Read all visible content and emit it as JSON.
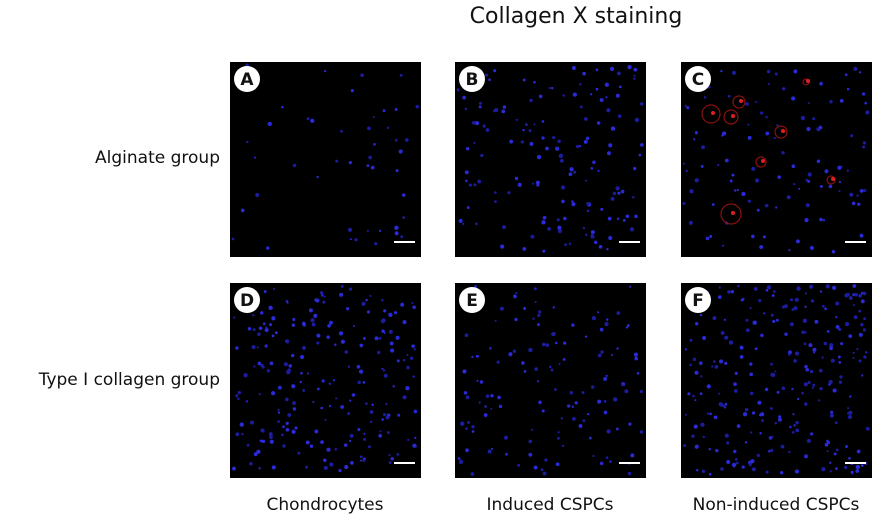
{
  "title": "Collagen X staining",
  "rows": [
    "Alginate group",
    "Type Ⅰ collagen group"
  ],
  "columns": [
    "Chondrocytes",
    "Induced CSPCs",
    "Non-induced CSPCs"
  ],
  "panels": [
    "A",
    "B",
    "C",
    "D",
    "E",
    "F"
  ]
}
